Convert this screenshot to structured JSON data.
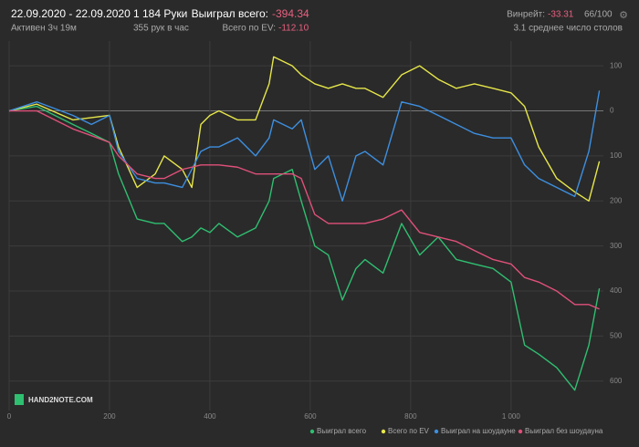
{
  "header": {
    "date_range": "22.09.2020 - 22.09.2020",
    "active": "Активен 3ч 19м",
    "hands": "1 184 Руки",
    "hands_per_hour": "355 рук в час",
    "won_label": "Выиграл всего:",
    "won_value": "-394.34",
    "ev_label": "Всего по EV:",
    "ev_value": "-112.10",
    "winrate_label": "Винрейт:",
    "winrate_value": "-33.31",
    "winrate_unit": "66/100",
    "tables": "3.1 среднее число столов"
  },
  "logo": "HAND2NOTE.COM",
  "chart_data": {
    "type": "line",
    "x": [
      0,
      55,
      127,
      164,
      200,
      218,
      255,
      291,
      309,
      345,
      364,
      382,
      400,
      418,
      455,
      491,
      518,
      527,
      564,
      582,
      609,
      636,
      664,
      691,
      709,
      745,
      782,
      818,
      855,
      891,
      927,
      964,
      1000,
      1027,
      1055,
      1091,
      1127,
      1155,
      1176
    ],
    "series": [
      {
        "name": "Выиграл всего",
        "color": "#2fbf71",
        "values": [
          0,
          10,
          -30,
          -50,
          -70,
          -140,
          -240,
          -250,
          -250,
          -290,
          -280,
          -260,
          -270,
          -250,
          -280,
          -260,
          -200,
          -150,
          -130,
          -200,
          -300,
          -320,
          -420,
          -350,
          -330,
          -360,
          -250,
          -320,
          -280,
          -330,
          -340,
          -350,
          -380,
          -520,
          -540,
          -570,
          -620,
          -520,
          -394
        ]
      },
      {
        "name": "Всего по EV",
        "color": "#e6e64a",
        "values": [
          0,
          15,
          -20,
          -15,
          -10,
          -80,
          -170,
          -140,
          -100,
          -130,
          -170,
          -30,
          -10,
          0,
          -20,
          -20,
          60,
          120,
          100,
          80,
          60,
          50,
          60,
          50,
          50,
          30,
          80,
          100,
          70,
          50,
          60,
          50,
          40,
          10,
          -80,
          -150,
          -180,
          -200,
          -112
        ]
      },
      {
        "name": "Выиграл на шоудауне",
        "color": "#3d8fe0",
        "values": [
          0,
          20,
          -10,
          -30,
          -10,
          -90,
          -150,
          -160,
          -160,
          -170,
          -130,
          -90,
          -80,
          -80,
          -60,
          -100,
          -60,
          -20,
          -40,
          -20,
          -130,
          -100,
          -200,
          -100,
          -90,
          -120,
          20,
          10,
          -10,
          -30,
          -50,
          -60,
          -60,
          -120,
          -150,
          -170,
          -190,
          -90,
          45
        ]
      },
      {
        "name": "Выиграл без шоудауна",
        "color": "#e0507a",
        "values": [
          0,
          0,
          -40,
          -55,
          -70,
          -100,
          -140,
          -150,
          -150,
          -130,
          -125,
          -120,
          -120,
          -120,
          -125,
          -140,
          -140,
          -140,
          -140,
          -150,
          -230,
          -250,
          -250,
          -250,
          -250,
          -240,
          -220,
          -270,
          -280,
          -290,
          -310,
          -330,
          -340,
          -370,
          -380,
          -400,
          -430,
          -430,
          -440
        ]
      }
    ],
    "xlim": [
      0,
      1184
    ],
    "xticks": [
      0,
      200,
      400,
      600,
      800,
      {
        "value": 1000,
        "label": "1 000"
      }
    ],
    "ylim": [
      -645,
      155
    ],
    "yticks": [
      100,
      0,
      {
        "value": -100,
        "label": "100"
      },
      {
        "value": -200,
        "label": "200"
      },
      {
        "value": -300,
        "label": "300"
      },
      {
        "value": -400,
        "label": "400"
      },
      {
        "value": -500,
        "label": "500"
      },
      {
        "value": -600,
        "label": "600"
      }
    ],
    "grid": true
  }
}
